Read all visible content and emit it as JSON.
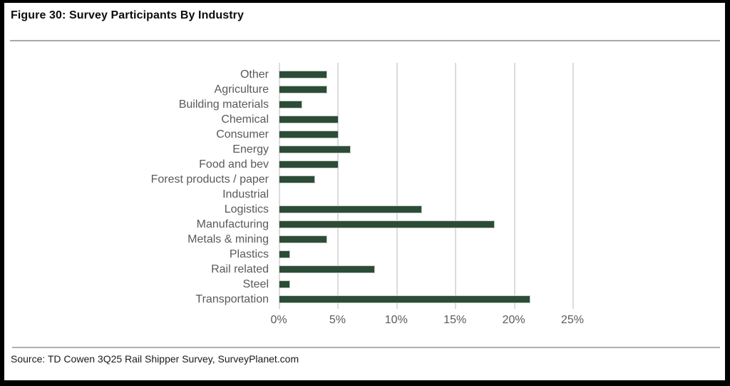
{
  "header": {
    "title": "Figure 30: Survey Participants By Industry"
  },
  "footer": {
    "source": "Source: TD Cowen 3Q25 Rail Shipper Survey, SurveyPlanet.com"
  },
  "colors": {
    "bar_fill": "#2d4c37",
    "bar_border": "#c3ccc3",
    "label_text": "#5a5a5a",
    "gridline": "#dcdcdc",
    "rule": "#a8a8a8",
    "frame": "#000000",
    "background": "#ffffff"
  },
  "chart_data": {
    "type": "bar",
    "orientation": "horizontal",
    "title": "Figure 30: Survey Participants By Industry",
    "xlabel": "",
    "ylabel": "",
    "categories": [
      "Other",
      "Agriculture",
      "Building materials",
      "Chemical",
      "Consumer",
      "Energy",
      "Food and bev",
      "Forest products / paper",
      "Industrial",
      "Logistics",
      "Manufacturing",
      "Metals & mining",
      "Plastics",
      "Rail related",
      "Steel",
      "Transportation"
    ],
    "values": [
      4.1,
      4.1,
      2.0,
      5.1,
      5.1,
      6.1,
      5.1,
      3.1,
      0,
      12.2,
      18.4,
      4.1,
      1.0,
      8.2,
      1.0,
      21.4
    ],
    "value_unit": "%",
    "xlim": [
      0,
      25
    ],
    "x_ticks": [
      {
        "value": 0,
        "label": "0%"
      },
      {
        "value": 5,
        "label": "5%"
      },
      {
        "value": 10,
        "label": "10%"
      },
      {
        "value": 15,
        "label": "15%"
      },
      {
        "value": 20,
        "label": "20%"
      },
      {
        "value": 25,
        "label": "25%"
      }
    ],
    "grid": "vertical",
    "legend": "none"
  }
}
